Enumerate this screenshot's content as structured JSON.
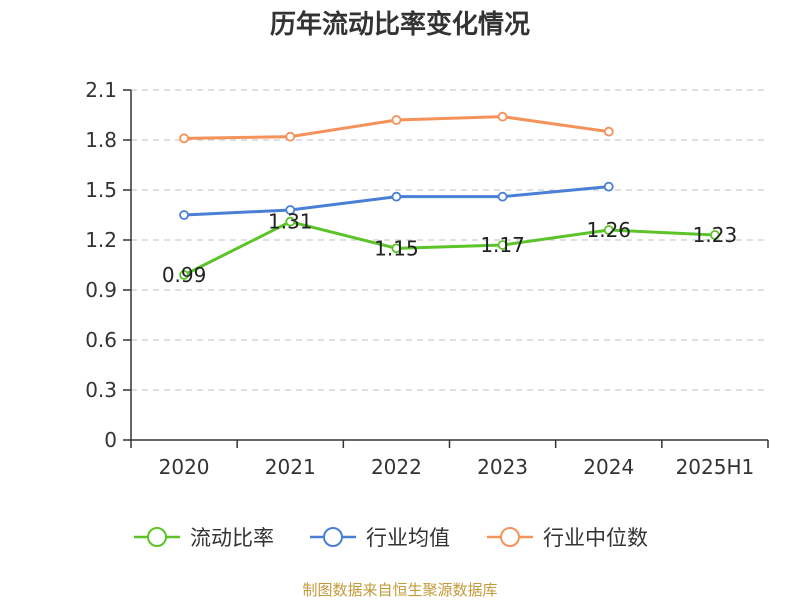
{
  "chart_data": {
    "type": "line",
    "title": "历年流动比率变化情况",
    "categories": [
      "2020",
      "2021",
      "2022",
      "2023",
      "2024",
      "2025H1"
    ],
    "y_ticks": [
      "0",
      "0.3",
      "0.6",
      "0.9",
      "1.2",
      "1.5",
      "1.8",
      "2.1"
    ],
    "ylim": [
      0,
      2.1
    ],
    "grid": true,
    "legend_position": "bottom",
    "series": [
      {
        "name": "流动比率",
        "color": "#5cc328",
        "values": [
          0.99,
          1.31,
          1.15,
          1.17,
          1.26,
          1.23
        ],
        "labels": [
          "0.99",
          "1.31",
          "1.15",
          "1.17",
          "1.26",
          "1.23"
        ]
      },
      {
        "name": "行业均值",
        "color": "#4a7fd6",
        "values": [
          1.35,
          1.38,
          1.46,
          1.46,
          1.52,
          null
        ]
      },
      {
        "name": "行业中位数",
        "color": "#f4925a",
        "values": [
          1.81,
          1.82,
          1.92,
          1.94,
          1.85,
          null
        ]
      }
    ],
    "source": "制图数据来自恒生聚源数据库",
    "source_color": "#c39a3a"
  }
}
